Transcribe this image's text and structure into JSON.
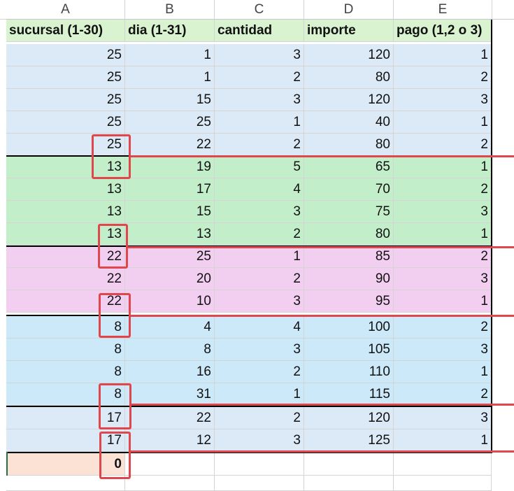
{
  "columns": [
    "A",
    "B",
    "C",
    "D",
    "E"
  ],
  "header": [
    "sucursal (1-30)",
    "dia (1-31)",
    "cantidad",
    "importe",
    "pago (1,2 o 3)"
  ],
  "rows": [
    [
      "25",
      "1",
      "3",
      "120",
      "1"
    ],
    [
      "25",
      "1",
      "2",
      "80",
      "2"
    ],
    [
      "25",
      "15",
      "3",
      "120",
      "3"
    ],
    [
      "25",
      "25",
      "1",
      "40",
      "1"
    ],
    [
      "25",
      "22",
      "2",
      "80",
      "2"
    ],
    [
      "13",
      "19",
      "5",
      "65",
      "1"
    ],
    [
      "13",
      "17",
      "4",
      "70",
      "2"
    ],
    [
      "13",
      "15",
      "3",
      "75",
      "3"
    ],
    [
      "13",
      "13",
      "2",
      "80",
      "1"
    ],
    [
      "22",
      "25",
      "1",
      "85",
      "2"
    ],
    [
      "22",
      "20",
      "2",
      "90",
      "3"
    ],
    [
      "22",
      "10",
      "3",
      "95",
      "1"
    ],
    [
      "8",
      "4",
      "4",
      "100",
      "2"
    ],
    [
      "8",
      "8",
      "3",
      "105",
      "3"
    ],
    [
      "8",
      "16",
      "2",
      "110",
      "1"
    ],
    [
      "8",
      "31",
      "1",
      "115",
      "2"
    ],
    [
      "17",
      "22",
      "2",
      "120",
      "3"
    ],
    [
      "17",
      "12",
      "3",
      "125",
      "1"
    ]
  ],
  "result_cell": "0",
  "colors": {
    "header_bg": "#d9f2d0",
    "band_25": "#dce9f6",
    "band_13": "#c2efca",
    "band_22": "#f2cef0",
    "band_8": "#cbe9f9",
    "band_17": "#dce9f6",
    "result_bg": "#fbe2d5",
    "annotation_red": "#e0474c"
  }
}
